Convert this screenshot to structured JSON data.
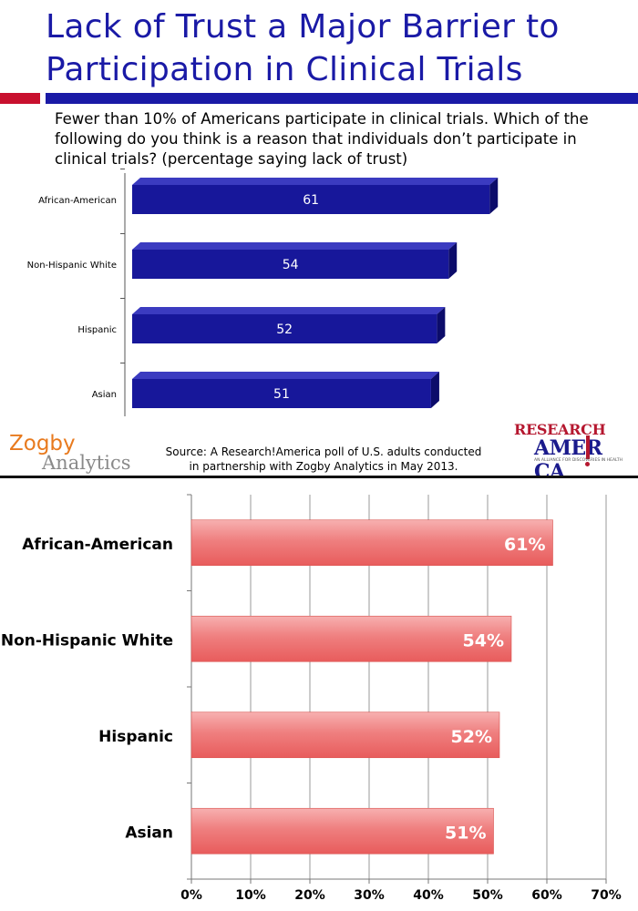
{
  "slide": {
    "title_line1": "Lack of Trust a Major Barrier to",
    "title_line2": "Participation in Clinical Trials",
    "question": "Fewer than 10% of Americans participate in clinical trials. Which of the following do you think is a reason that individuals don’t participate in clinical trials? (percentage saying lack of trust)",
    "source_line1": "Source: A Research!America poll of U.S. adults conducted",
    "source_line2": "in partnership with Zogby Analytics in May 2013.",
    "zogby_line1": "Zogby",
    "zogby_line2": "Analytics",
    "ra_line1": "RESEARCH",
    "ra_line2": "AMER  CA",
    "ra_tagline": "AN ALLIANCE FOR DISCOVERIES IN HEALTH",
    "colors": {
      "title": "#1a1aa6",
      "bar": "#17179a",
      "accent_red": "#c8102e",
      "zogby_orange": "#e87a1e"
    }
  },
  "chart_data": [
    {
      "type": "bar",
      "orientation": "horizontal",
      "categories": [
        "African-American",
        "Non-Hispanic White",
        "Hispanic",
        "Asian"
      ],
      "values": [
        61,
        54,
        52,
        51
      ],
      "data_labels": [
        "61",
        "54",
        "52",
        "51"
      ],
      "style": "3d",
      "bar_color": "#17179a"
    },
    {
      "type": "bar",
      "orientation": "horizontal",
      "categories": [
        "African-American",
        "Non-Hispanic White",
        "Hispanic",
        "Asian"
      ],
      "values": [
        61,
        54,
        52,
        51
      ],
      "data_labels": [
        "61%",
        "54%",
        "52%",
        "51%"
      ],
      "x_ticks": [
        "0%",
        "10%",
        "20%",
        "30%",
        "40%",
        "50%",
        "60%",
        "70%"
      ],
      "xlim": [
        0,
        70
      ],
      "grid": true,
      "bar_color": "#ee6b6b"
    }
  ]
}
